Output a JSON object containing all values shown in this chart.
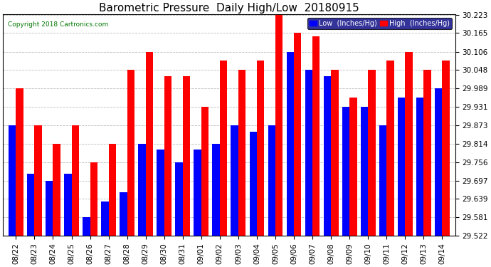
{
  "title": "Barometric Pressure  Daily High/Low  20180915",
  "copyright": "Copyright 2018 Cartronics.com",
  "legend_low": "Low  (Inches/Hg)",
  "legend_high": "High  (Inches/Hg)",
  "dates": [
    "08/22",
    "08/23",
    "08/24",
    "08/25",
    "08/26",
    "08/27",
    "08/28",
    "08/29",
    "08/30",
    "08/31",
    "09/01",
    "09/02",
    "09/03",
    "09/04",
    "09/05",
    "09/06",
    "09/07",
    "09/08",
    "09/09",
    "09/10",
    "09/11",
    "09/12",
    "09/13",
    "09/14"
  ],
  "low": [
    29.873,
    29.718,
    29.697,
    29.718,
    29.581,
    29.63,
    29.66,
    29.814,
    29.795,
    29.756,
    29.795,
    29.814,
    29.873,
    29.853,
    29.873,
    30.106,
    30.048,
    30.028,
    29.931,
    29.931,
    29.873,
    29.96,
    29.96,
    29.989
  ],
  "high": [
    29.989,
    29.873,
    29.814,
    29.873,
    29.756,
    29.814,
    30.048,
    30.106,
    30.028,
    30.028,
    29.931,
    30.077,
    30.048,
    30.077,
    30.223,
    30.165,
    30.155,
    30.048,
    29.96,
    30.048,
    30.077,
    30.106,
    30.048,
    30.077
  ],
  "ymin": 29.522,
  "ymax": 30.223,
  "yticks": [
    29.522,
    29.581,
    29.639,
    29.697,
    29.756,
    29.814,
    29.873,
    29.931,
    29.989,
    30.048,
    30.106,
    30.165,
    30.223
  ],
  "color_low": "#0000FF",
  "color_high": "#FF0000",
  "background_color": "#FFFFFF",
  "grid_color": "#BBBBBB",
  "title_fontsize": 11,
  "tick_fontsize": 7.5,
  "bar_width": 0.4,
  "legend_facecolor": "#000080",
  "copyright_color": "#007700"
}
